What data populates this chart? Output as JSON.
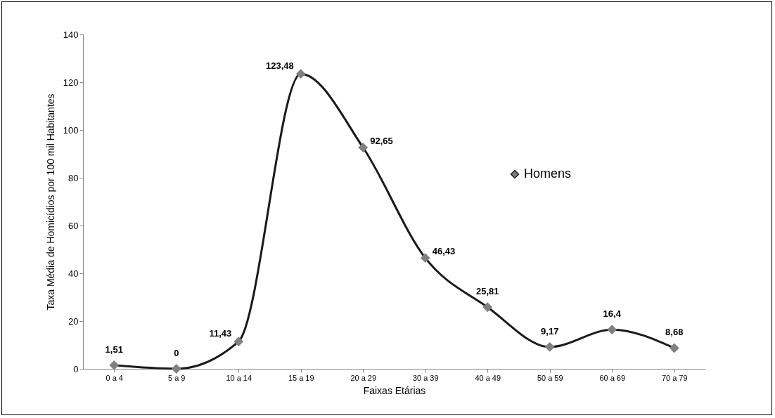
{
  "chart_data": {
    "type": "line",
    "xlabel": "Faixas Etárias",
    "ylabel": "Taxa Média de Homicídios por 100 mil Habitantes",
    "categories": [
      "0 a 4",
      "5 a 9",
      "10 a 14",
      "15 a 19",
      "20 a 29",
      "30 a 39",
      "40 a 49",
      "50 a 59",
      "60 a 69",
      "70 a 79"
    ],
    "series": [
      {
        "name": "Homens",
        "color": "#1a1a1a",
        "values": [
          1.51,
          0,
          11.43,
          123.48,
          92.65,
          46.43,
          25.81,
          9.17,
          16.4,
          8.68
        ],
        "value_labels": [
          "1,51",
          "0",
          "11,43",
          "123,48",
          "92,65",
          "46,43",
          "25,81",
          "9,17",
          "16,4",
          "8,68"
        ]
      }
    ],
    "ylim": [
      0,
      140
    ],
    "yticks": [
      0,
      20,
      40,
      60,
      80,
      100,
      120,
      140
    ],
    "grid": false,
    "legend": "top right",
    "marker": "diamond",
    "line_style": "solid"
  }
}
